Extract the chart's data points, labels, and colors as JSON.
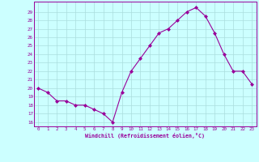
{
  "x": [
    0,
    1,
    2,
    3,
    4,
    5,
    6,
    7,
    8,
    9,
    10,
    11,
    12,
    13,
    14,
    15,
    16,
    17,
    18,
    19,
    20,
    21,
    22,
    23
  ],
  "y": [
    20,
    19.5,
    18.5,
    18.5,
    18,
    18,
    17.5,
    17,
    16,
    19.5,
    22,
    23.5,
    25,
    26.5,
    27,
    28,
    29,
    29.5,
    28.5,
    26.5,
    24,
    22,
    22,
    20.5
  ],
  "line_color": "#990099",
  "marker": "D",
  "marker_size": 2,
  "bg_color": "#ccffff",
  "grid_color": "#aadddd",
  "xlabel": "Windchill (Refroidissement éolien,°C)",
  "xlabel_color": "#990099",
  "tick_color": "#990099",
  "yticks": [
    16,
    17,
    18,
    19,
    20,
    21,
    22,
    23,
    24,
    25,
    26,
    27,
    28,
    29
  ],
  "ylim": [
    15.5,
    30.2
  ],
  "xlim": [
    -0.5,
    23.5
  ],
  "xticks": [
    0,
    1,
    2,
    3,
    4,
    5,
    6,
    7,
    8,
    9,
    10,
    11,
    12,
    13,
    14,
    15,
    16,
    17,
    18,
    19,
    20,
    21,
    22,
    23
  ]
}
